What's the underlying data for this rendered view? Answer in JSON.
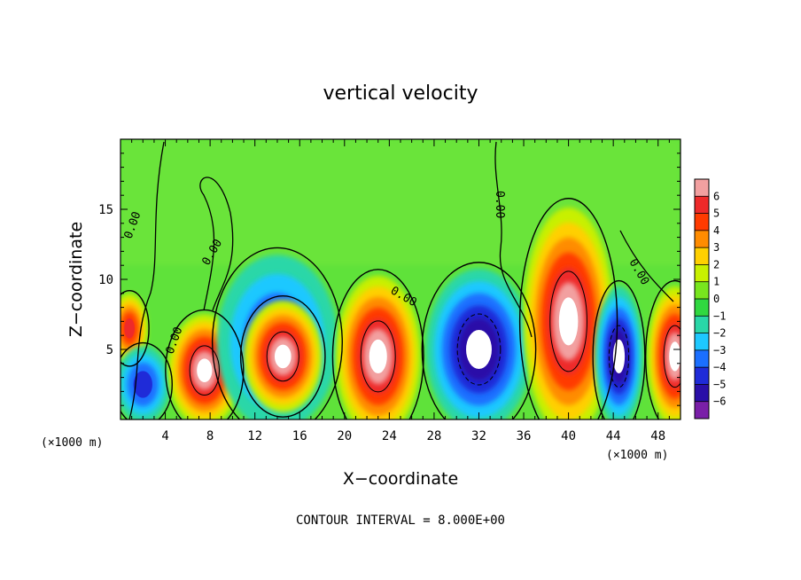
{
  "chart_data": {
    "type": "heatmap",
    "title": "vertical velocity",
    "xlabel": "X−coordinate",
    "ylabel": "Z−coordinate",
    "x_unit_label": "(×1000 m)",
    "z_unit_label": "(×1000 m)",
    "footer": "CONTOUR INTERVAL = 8.000E+00",
    "contour_value_label": "0.00",
    "xlim": [
      0,
      50
    ],
    "ylim": [
      0,
      20
    ],
    "x_ticks": [
      4,
      8,
      12,
      16,
      20,
      24,
      28,
      32,
      36,
      40,
      44,
      48
    ],
    "y_ticks": [
      5,
      10,
      15
    ],
    "colorbar": {
      "ticks": [
        6,
        5,
        4,
        3,
        2,
        1,
        0,
        -1,
        -2,
        -3,
        -4,
        -5,
        -6
      ],
      "colors": [
        "#f2a0a0",
        "#ee2a2a",
        "#ff3b00",
        "#ff8c00",
        "#ffd000",
        "#c8f000",
        "#78e61e",
        "#30d840",
        "#29d7a8",
        "#1ec8ff",
        "#1b6fff",
        "#1f2bd8",
        "#2a0fa8",
        "#7a1fa8"
      ]
    },
    "cells": [
      {
        "x": 0.8,
        "z": 6.5,
        "value": 5.5,
        "rx": 1.2,
        "rz": 2.0
      },
      {
        "x": 2.0,
        "z": 2.5,
        "value": -5.0,
        "rx": 1.8,
        "rz": 2.2
      },
      {
        "x": 7.5,
        "z": 3.5,
        "value": 8.0,
        "rx": 2.4,
        "rz": 3.2
      },
      {
        "x": 14.0,
        "z": 5.5,
        "value": -5.0,
        "rx": 4.0,
        "rz": 5.0
      },
      {
        "x": 14.5,
        "z": 4.5,
        "value": 8.0,
        "rx": 2.6,
        "rz": 3.2
      },
      {
        "x": 23.0,
        "z": 4.5,
        "value": 8.0,
        "rx": 2.8,
        "rz": 4.6
      },
      {
        "x": 32.0,
        "z": 5.0,
        "value": -8.0,
        "rx": 3.5,
        "rz": 4.6
      },
      {
        "x": 40.0,
        "z": 7.0,
        "value": 8.0,
        "rx": 3.0,
        "rz": 6.5
      },
      {
        "x": 44.5,
        "z": 4.5,
        "value": -8.0,
        "rx": 1.6,
        "rz": 4.0
      },
      {
        "x": 49.5,
        "z": 4.5,
        "value": 8.0,
        "rx": 1.8,
        "rz": 4.0
      }
    ]
  }
}
